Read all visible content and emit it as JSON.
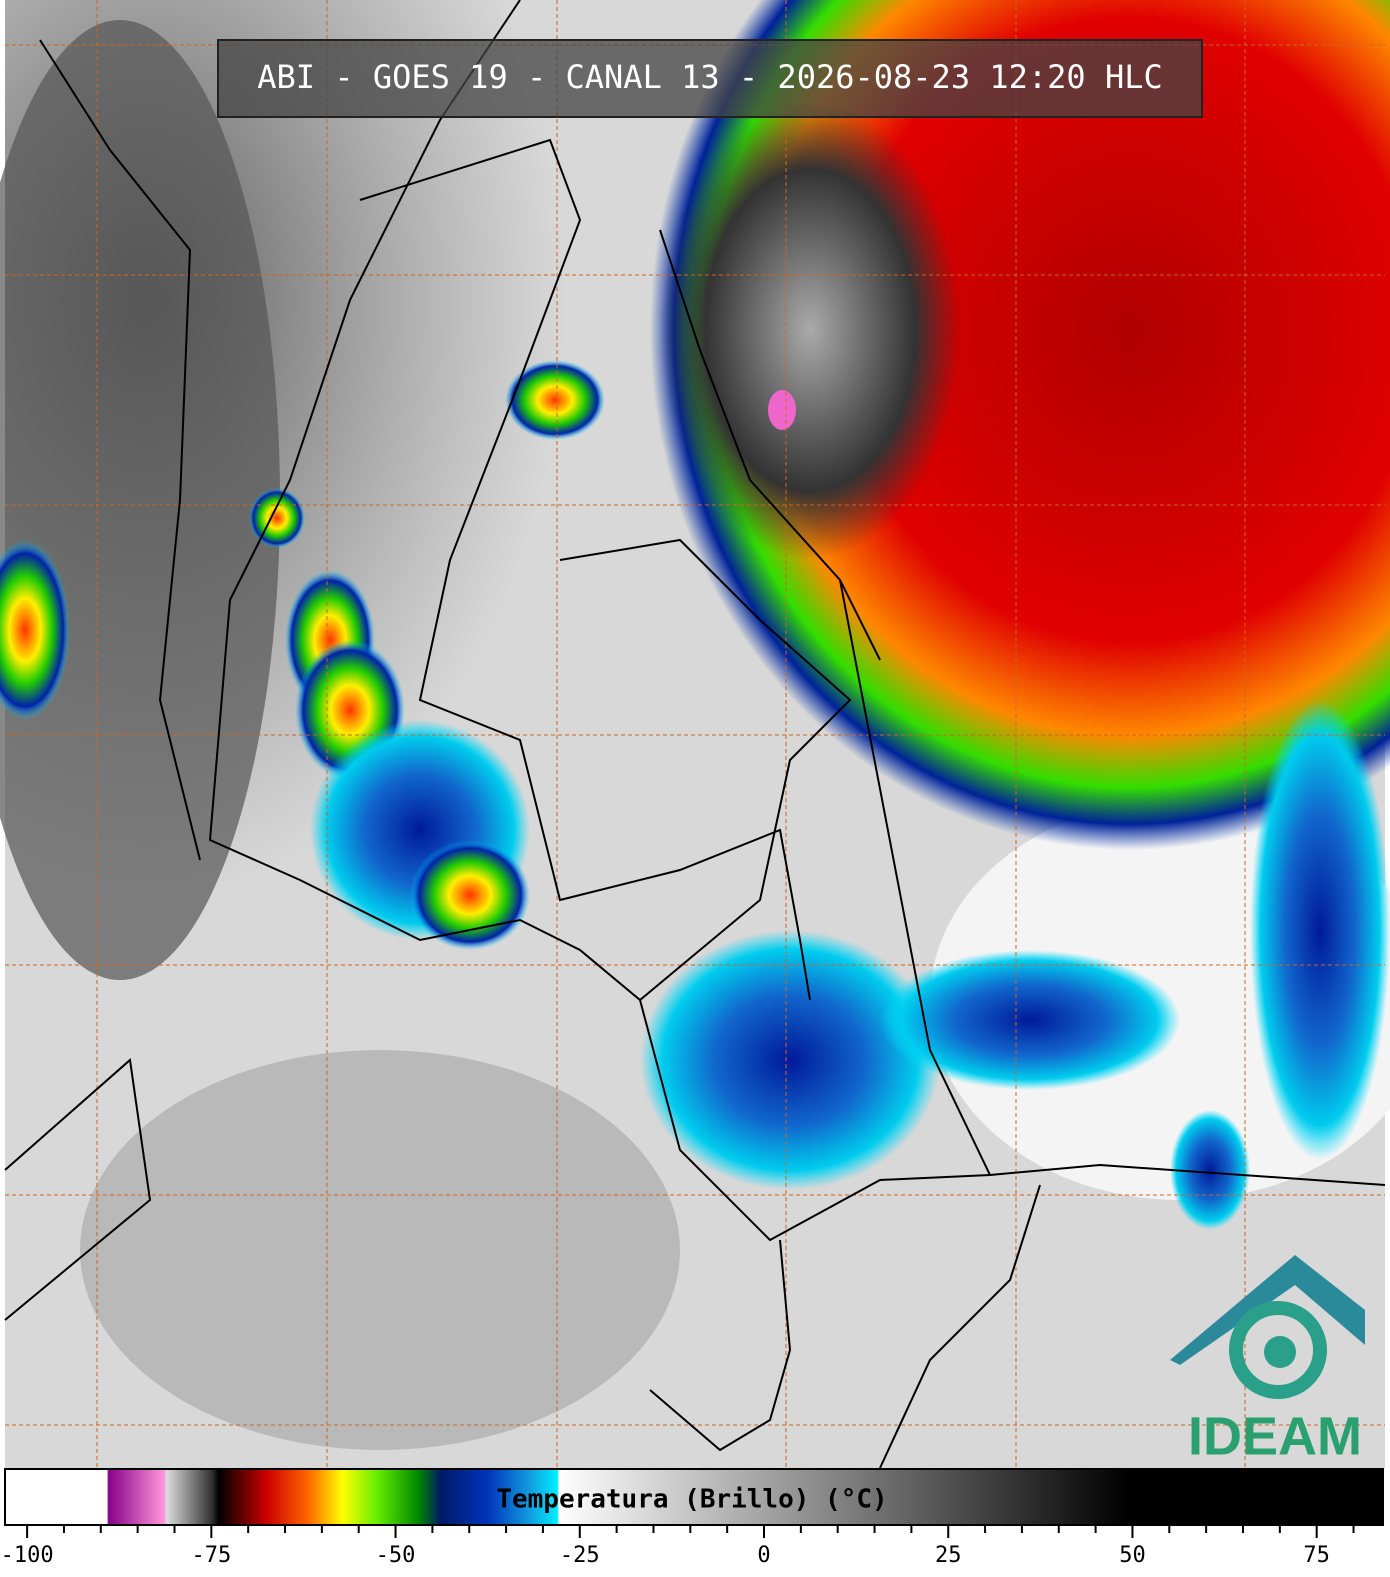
{
  "title": "ABI - GOES 19 - CANAL 13 - 2026-08-23 12:20 HLC",
  "logo": "IDEAM",
  "colorbar": {
    "label": "Temperatura (Brillo) (°C)",
    "xlim": [
      -103,
      84
    ],
    "xticks": [
      -100,
      -75,
      -50,
      -25,
      0,
      25,
      50,
      75
    ],
    "minor_xticks": [
      -95,
      -90,
      -85,
      -80,
      -70,
      -65,
      -60,
      -55,
      -45,
      -40,
      -35,
      -30,
      -20,
      -15,
      -10,
      -5,
      5,
      10,
      15,
      20,
      30,
      35,
      40,
      45,
      55,
      60,
      65,
      70,
      80
    ]
  }
}
